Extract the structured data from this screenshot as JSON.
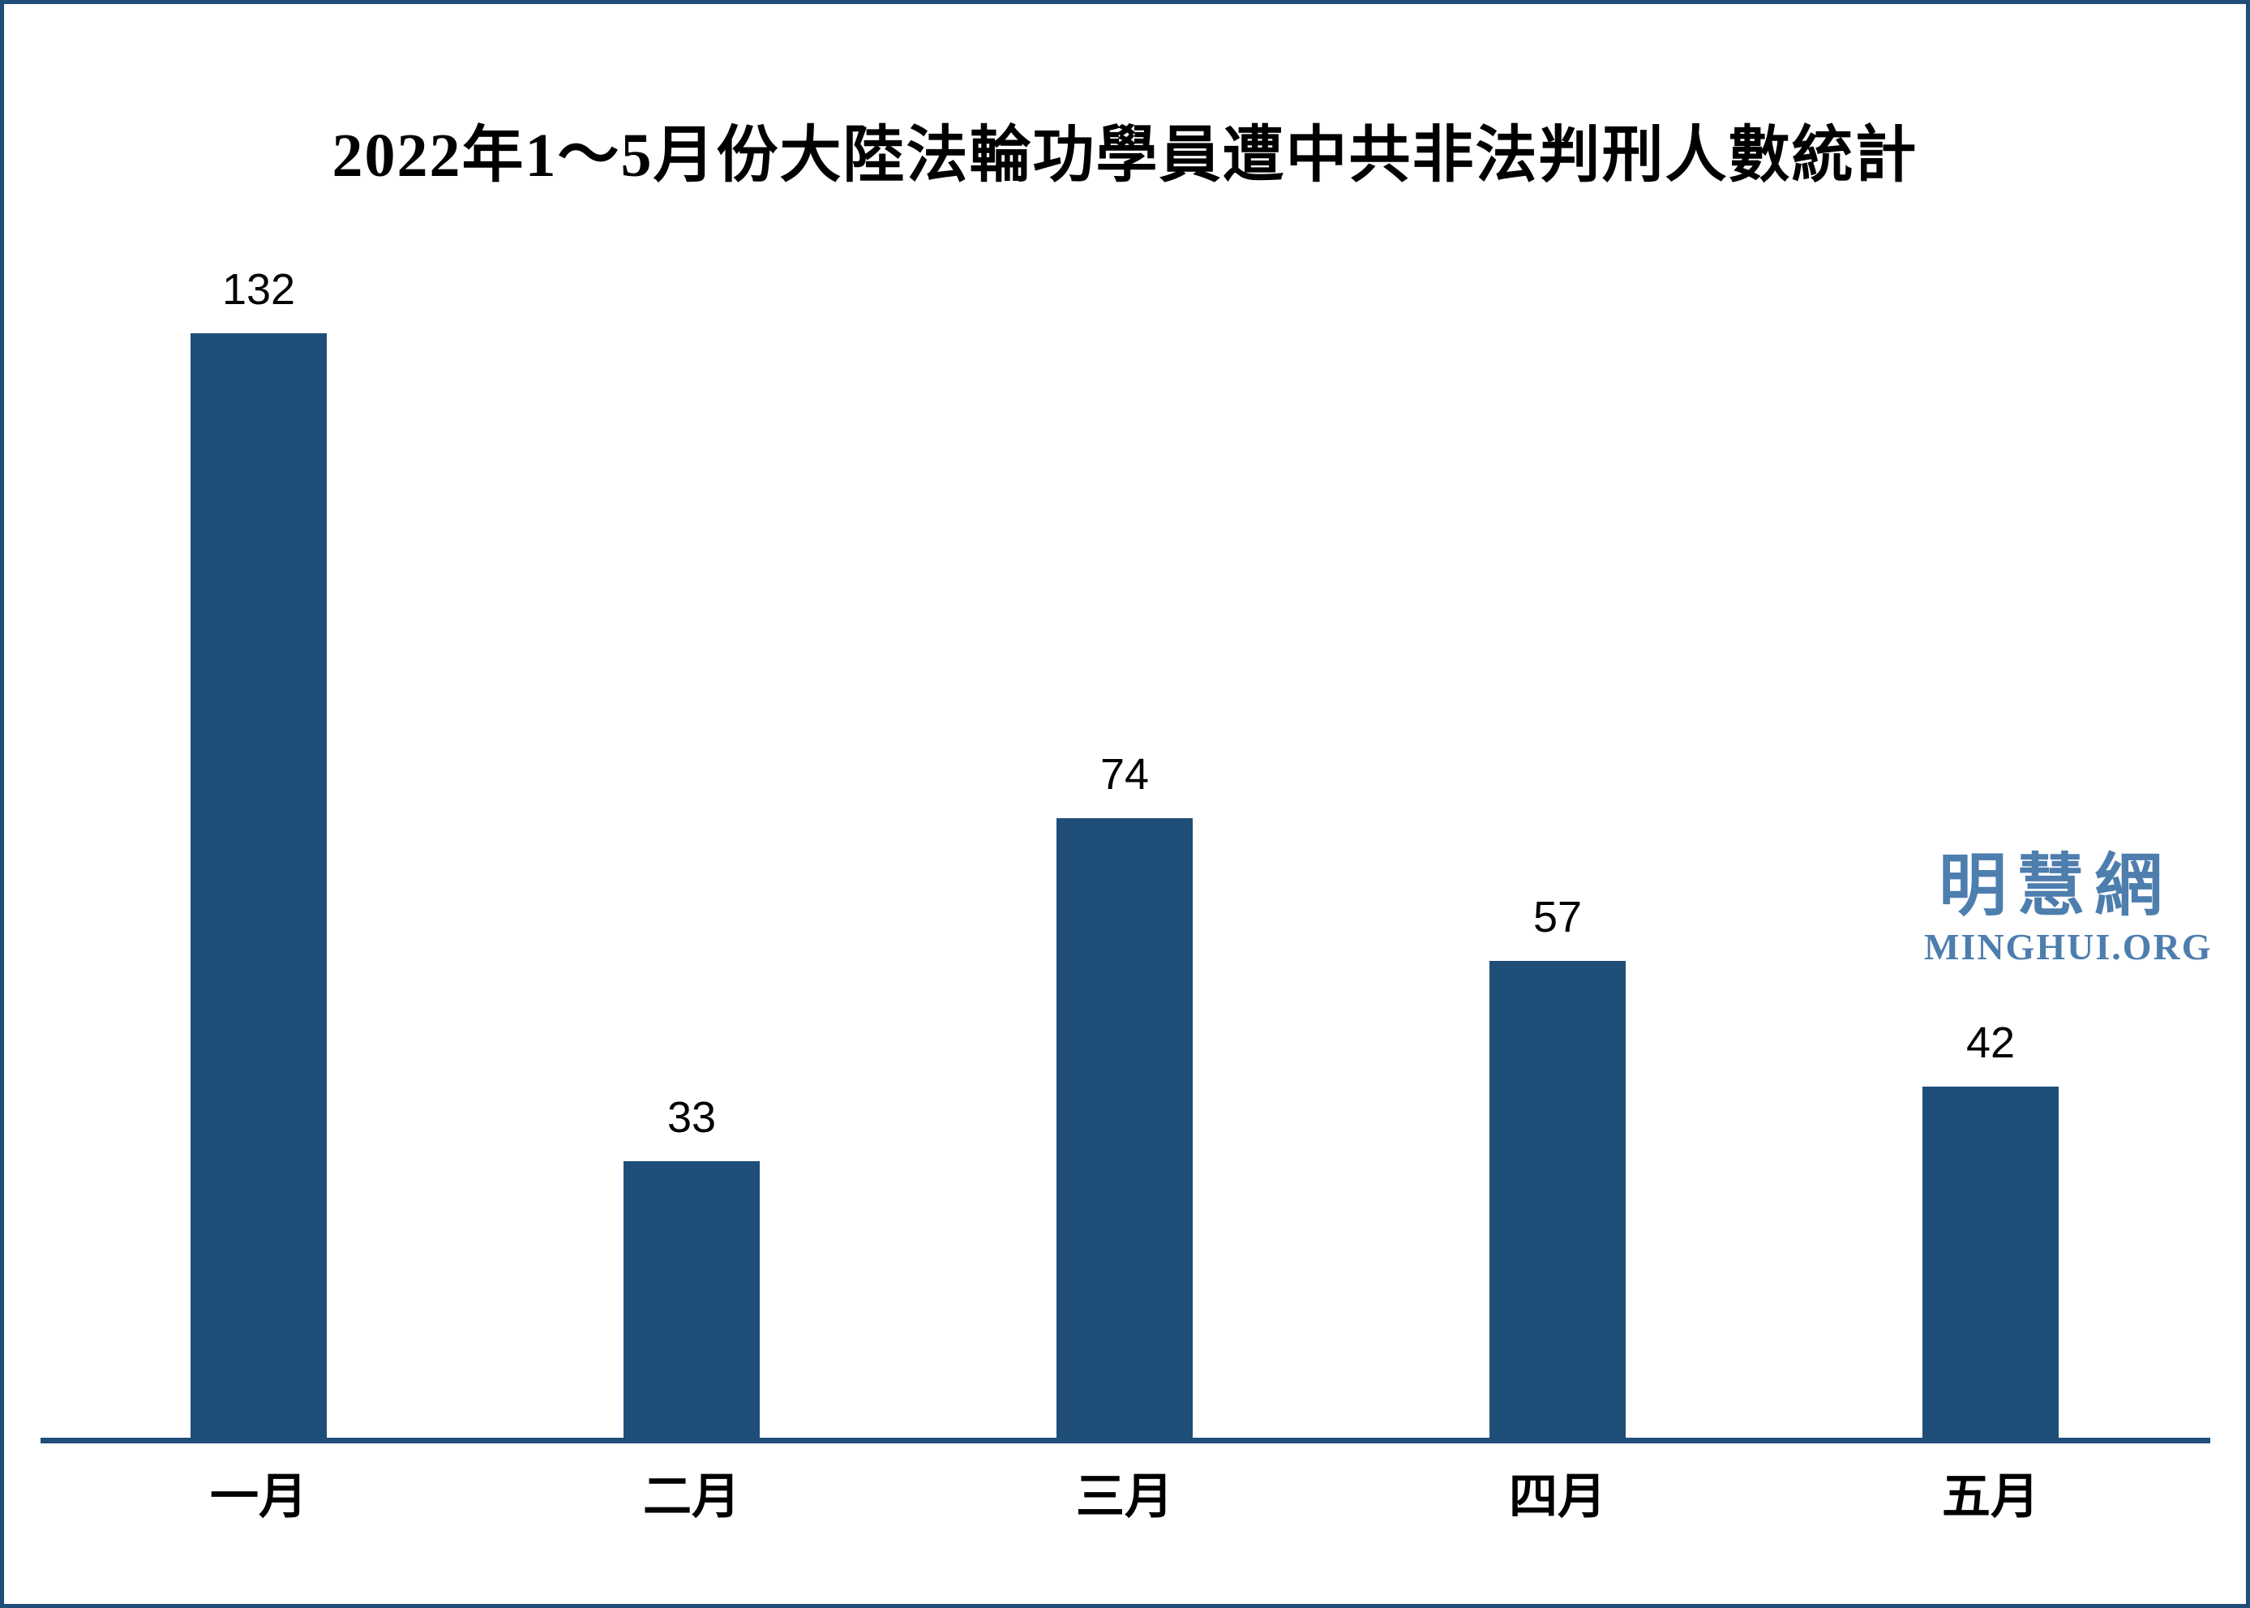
{
  "page": {
    "background": "#FFFFFF",
    "border_color": "#1F4E79"
  },
  "title": {
    "text": "2022年1～5月份大陸法輪功學員遭中共非法判刑人數統計",
    "color": "#000000"
  },
  "watermark": {
    "cjk": "明慧網",
    "latin": "MINGHUI.ORG",
    "color": "#4D7EAE"
  },
  "chart_data": {
    "type": "bar",
    "title": "2022年1～5月份大陸法輪功學員遭中共非法判刑人數統計",
    "categories": [
      "一月",
      "二月",
      "三月",
      "四月",
      "五月"
    ],
    "values": [
      132,
      33,
      74,
      57,
      42
    ],
    "xlabel": "",
    "ylabel": "",
    "ylim": [
      0,
      140
    ],
    "grid": false,
    "legend": "none",
    "data_labels": true,
    "bar_color": "#1F4E79",
    "axis_line_color": "#1F4E79",
    "label_color": "#000000"
  }
}
